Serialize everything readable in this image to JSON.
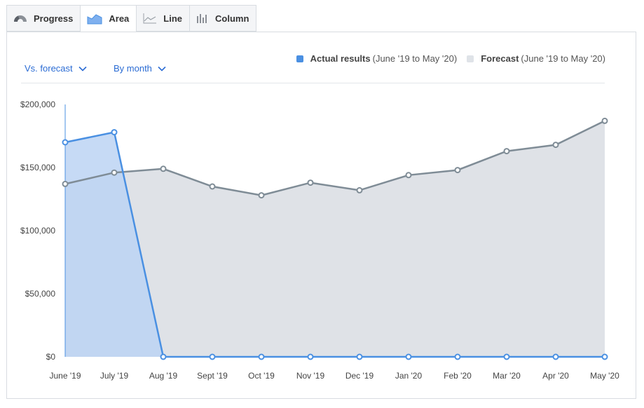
{
  "tabs": [
    {
      "label": "Progress",
      "icon": "gauge-icon",
      "active": false
    },
    {
      "label": "Area",
      "icon": "area-chart-icon",
      "active": true
    },
    {
      "label": "Line",
      "icon": "line-chart-icon",
      "active": false
    },
    {
      "label": "Column",
      "icon": "column-chart-icon",
      "active": false
    }
  ],
  "controls": {
    "comparison": {
      "label": "Vs. forecast",
      "icon": "chevron-down-icon"
    },
    "period": {
      "label": "By month",
      "icon": "chevron-down-icon"
    }
  },
  "legend": {
    "actual": {
      "name": "Actual results",
      "range": "(June '19 to May '20)",
      "color": "#4a90e2"
    },
    "forecast": {
      "name": "Forecast",
      "range": "(June '19 to May '20)",
      "color": "#dfe3e8"
    }
  },
  "colors": {
    "actual_line": "#4a90e2",
    "actual_fill": "#bcd4f3",
    "forecast_line": "#7f8c96",
    "forecast_fill": "#dfe2e7"
  },
  "chart_data": {
    "type": "area",
    "categories": [
      "June '19",
      "July '19",
      "Aug '19",
      "Sept '19",
      "Oct '19",
      "Nov '19",
      "Dec '19",
      "Jan '20",
      "Feb '20",
      "Mar '20",
      "Apr '20",
      "May '20"
    ],
    "series": [
      {
        "name": "Forecast",
        "values": [
          137000,
          146000,
          149000,
          135000,
          128000,
          138000,
          132000,
          144000,
          148000,
          163000,
          168000,
          187000
        ]
      },
      {
        "name": "Actual results",
        "values": [
          170000,
          178000,
          0,
          0,
          0,
          0,
          0,
          0,
          0,
          0,
          0,
          0
        ]
      }
    ],
    "yticks": [
      "$0",
      "$50,000",
      "$100,000",
      "$150,000",
      "$200,000"
    ],
    "ytick_values": [
      0,
      50000,
      100000,
      150000,
      200000
    ],
    "ylim": [
      0,
      200000
    ],
    "xlabel": "",
    "ylabel": ""
  }
}
